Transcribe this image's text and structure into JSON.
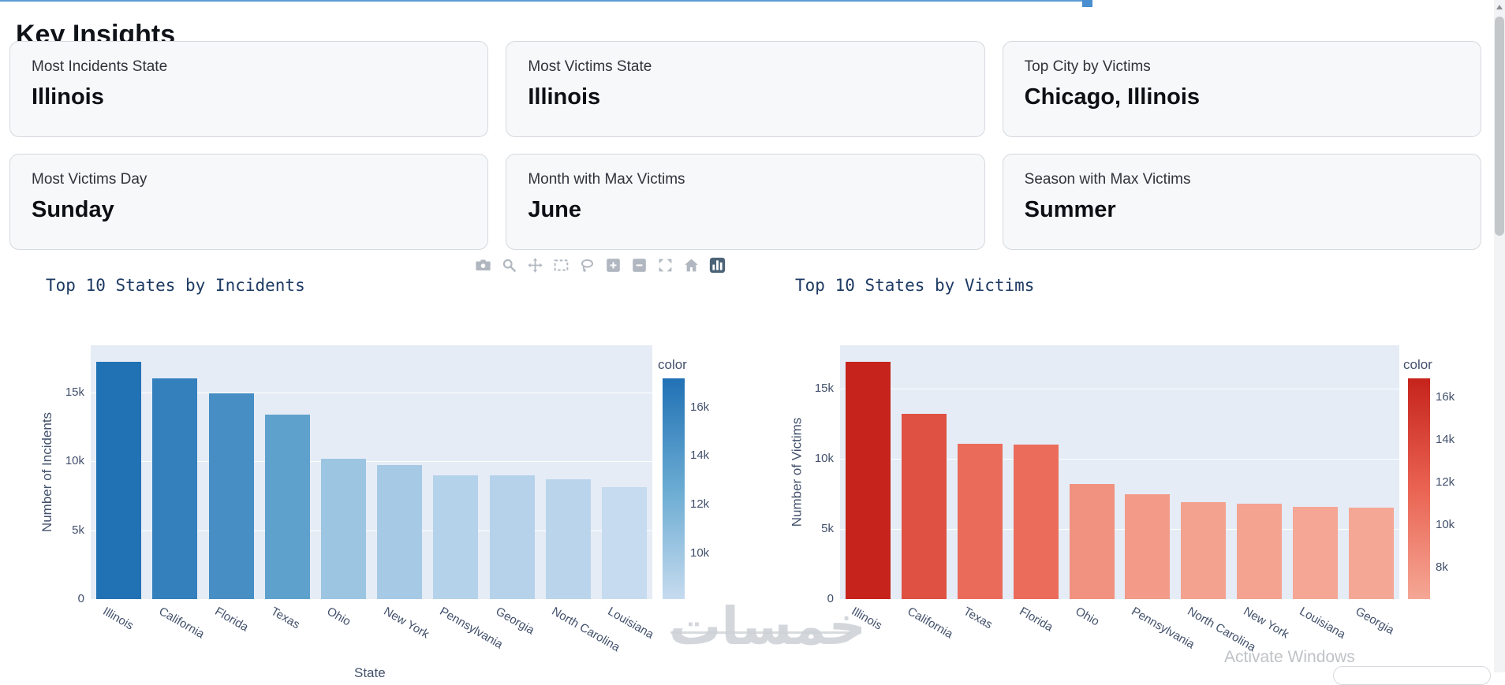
{
  "page": {
    "heading": "Key Insights",
    "watermark_text": "خمسات",
    "activate_text": "Activate Windows",
    "accent_line_color": "#5b9bd5"
  },
  "insight_cards": [
    {
      "label": "Most Incidents State",
      "value": "Illinois"
    },
    {
      "label": "Most Victims State",
      "value": "Illinois"
    },
    {
      "label": "Top City by Victims",
      "value": "Chicago, Illinois"
    },
    {
      "label": "Most Victims Day",
      "value": "Sunday"
    },
    {
      "label": "Month with Max Victims",
      "value": "June"
    },
    {
      "label": "Season with Max Victims",
      "value": "Summer"
    }
  ],
  "modebar": {
    "buttons": [
      {
        "icon": "camera",
        "name": "download-plot-camera-icon"
      },
      {
        "icon": "zoom",
        "name": "zoom-icon"
      },
      {
        "icon": "pan",
        "name": "pan-icon"
      },
      {
        "icon": "box_select",
        "name": "box-select-icon"
      },
      {
        "icon": "lasso",
        "name": "lasso-select-icon"
      },
      {
        "icon": "zoom_in",
        "name": "zoom-in-icon"
      },
      {
        "icon": "zoom_out",
        "name": "zoom-out-icon"
      },
      {
        "icon": "autoscale",
        "name": "autoscale-icon"
      },
      {
        "icon": "reset_home",
        "name": "reset-axes-home-icon"
      },
      {
        "icon": "plotly_logo",
        "name": "plotly-logo-icon"
      }
    ]
  },
  "chart_data": [
    {
      "type": "bar",
      "title": "Top 10 States by Incidents",
      "xlabel": "State",
      "ylabel": "Number of Incidents",
      "categories": [
        "Illinois",
        "California",
        "Florida",
        "Texas",
        "Ohio",
        "New York",
        "Pennsylvania",
        "Georgia",
        "North Carolina",
        "Louisiana"
      ],
      "values": [
        17200,
        16000,
        14900,
        13400,
        10200,
        9700,
        9000,
        8950,
        8700,
        8100
      ],
      "ylim": [
        0,
        18400
      ],
      "ytick_values": [
        0,
        5000,
        10000,
        15000
      ],
      "ytick_labels": [
        "0",
        "5k",
        "10k",
        "15k"
      ],
      "grid": true,
      "plot_bgcolor": "#e5ecf6",
      "legend_position": "right",
      "colorbar": {
        "title": "color",
        "min": 8100,
        "max": 17200,
        "tick_values": [
          16000,
          14000,
          12000,
          10000
        ],
        "tick_labels": [
          "16k",
          "14k",
          "12k",
          "10k"
        ],
        "stops": [
          "#c6dbef",
          "#6aabd2",
          "#2171b5"
        ]
      }
    },
    {
      "type": "bar",
      "title": "Top 10 States by Victims",
      "xlabel": "",
      "ylabel": "Number of Victims",
      "categories": [
        "Illinois",
        "California",
        "Texas",
        "Florida",
        "Ohio",
        "Pennsylvania",
        "North Carolina",
        "New York",
        "Louisiana",
        "Georgia"
      ],
      "values": [
        16900,
        13200,
        11100,
        11000,
        8200,
        7500,
        6900,
        6800,
        6600,
        6500
      ],
      "ylim": [
        0,
        18100
      ],
      "ytick_values": [
        0,
        5000,
        10000,
        15000
      ],
      "ytick_labels": [
        "0",
        "5k",
        "10k",
        "15k"
      ],
      "grid": true,
      "plot_bgcolor": "#e5ecf6",
      "legend_position": "right",
      "colorbar": {
        "title": "color",
        "min": 6500,
        "max": 16900,
        "tick_values": [
          16000,
          14000,
          12000,
          10000,
          8000
        ],
        "tick_labels": [
          "16k",
          "14k",
          "12k",
          "10k",
          "8k"
        ],
        "stops": [
          "#f5a795",
          "#ea6352",
          "#c5231b"
        ]
      }
    }
  ]
}
